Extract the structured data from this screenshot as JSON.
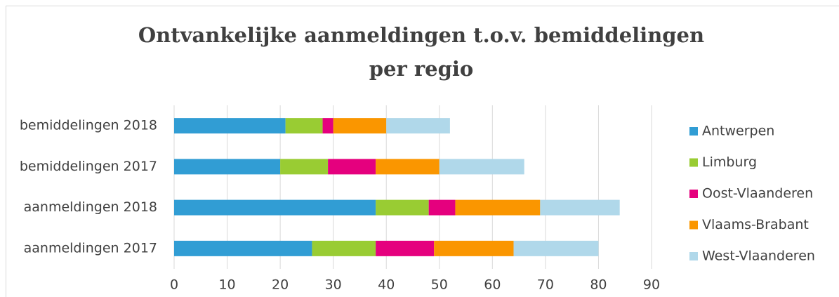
{
  "chart_data": {
    "type": "bar",
    "orientation": "horizontal",
    "stacked": true,
    "title": [
      "Ontvankelijke aanmeldingen t.o.v. bemiddelingen",
      "per regio"
    ],
    "categories": [
      "bemiddelingen 2018",
      "bemiddelingen 2017",
      "aanmeldingen 2018",
      "aanmeldingen 2017"
    ],
    "series": [
      {
        "name": "Antwerpen",
        "color": "#319dd4",
        "values": [
          21,
          20,
          38,
          26
        ]
      },
      {
        "name": "Limburg",
        "color": "#99cc33",
        "values": [
          7,
          9,
          10,
          12
        ]
      },
      {
        "name": "Oost-Vlaanderen",
        "color": "#e5007e",
        "values": [
          2,
          9,
          5,
          11
        ]
      },
      {
        "name": "Vlaams-Brabant",
        "color": "#fa9600",
        "values": [
          10,
          12,
          16,
          15
        ]
      },
      {
        "name": "West-Vlaanderen",
        "color": "#b0d8ea",
        "values": [
          12,
          16,
          15,
          16
        ]
      }
    ],
    "xlim": [
      0,
      90
    ],
    "xticks": [
      0,
      10,
      20,
      30,
      40,
      50,
      60,
      70,
      80,
      90
    ],
    "grid": true,
    "legend": "right"
  }
}
